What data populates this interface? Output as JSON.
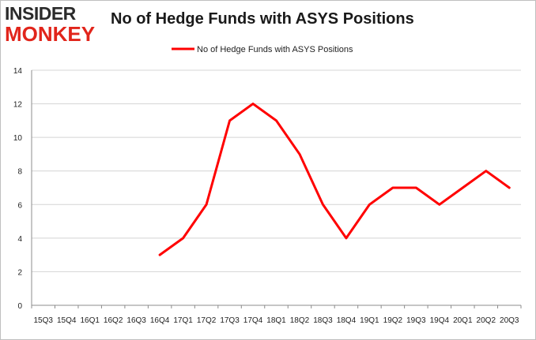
{
  "logo": {
    "line1": "INSIDER",
    "line2": "MONKEY"
  },
  "chart_data": {
    "type": "line",
    "title": "No of Hedge Funds with ASYS Positions",
    "xlabel": "",
    "ylabel": "",
    "categories": [
      "15Q3",
      "15Q4",
      "16Q1",
      "16Q2",
      "16Q3",
      "16Q4",
      "17Q1",
      "17Q2",
      "17Q3",
      "17Q4",
      "18Q1",
      "18Q2",
      "18Q3",
      "18Q4",
      "19Q1",
      "19Q2",
      "19Q3",
      "19Q4",
      "20Q1",
      "20Q2",
      "20Q3"
    ],
    "series": [
      {
        "name": "No of Hedge Funds with ASYS Positions",
        "color": "#ff0000",
        "values": [
          null,
          null,
          null,
          null,
          null,
          3,
          4,
          6,
          11,
          12,
          11,
          9,
          6,
          4,
          6,
          7,
          7,
          6,
          7,
          8,
          7
        ]
      }
    ],
    "ylim": [
      0,
      14
    ],
    "yticks": [
      0,
      2,
      4,
      6,
      8,
      10,
      12,
      14
    ],
    "grid": true,
    "legend": "top-center"
  }
}
